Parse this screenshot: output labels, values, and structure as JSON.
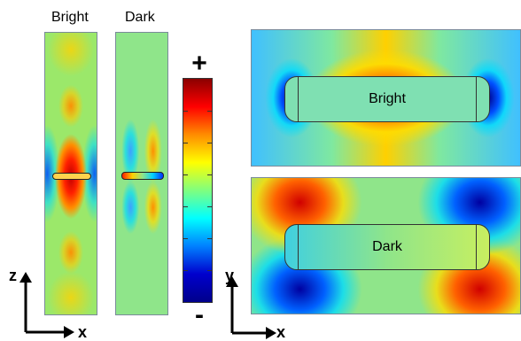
{
  "side_panels": {
    "bright_label": "Bright",
    "dark_label": "Dark"
  },
  "colorbar": {
    "plus": "+",
    "minus": "-",
    "colors": [
      "#8b0000",
      "#ff0000",
      "#ff8c00",
      "#ffff00",
      "#7fff7f",
      "#00ffff",
      "#0080ff",
      "#0000cd",
      "#00008b"
    ]
  },
  "top_panels": {
    "bright_label": "Bright",
    "dark_label": "Dark"
  },
  "axes_left": {
    "vertical": "z",
    "horizontal": "x"
  },
  "axes_right": {
    "vertical": "y",
    "horizontal": "x"
  }
}
